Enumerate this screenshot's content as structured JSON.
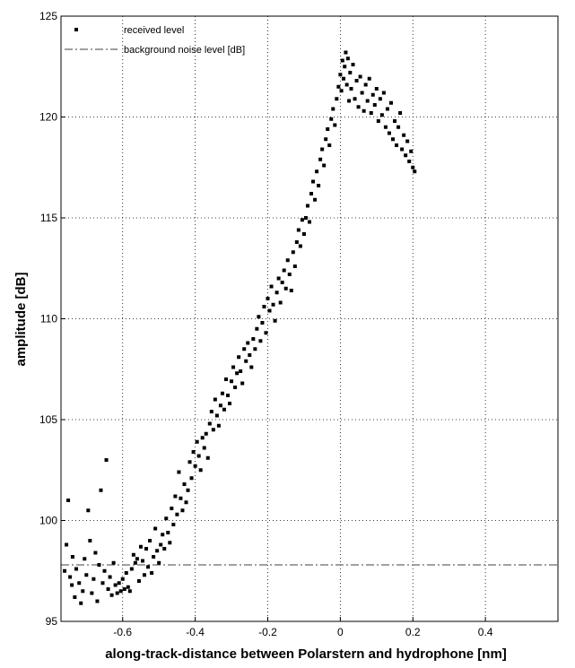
{
  "chart_data": {
    "type": "scatter",
    "title": "",
    "xlabel": "along-track-distance between Polarstern and hydrophone [nm]",
    "ylabel": "amplitude [dB]",
    "xlim": [
      -0.77,
      0.6
    ],
    "ylim": [
      95,
      125
    ],
    "xticks": [
      -0.6,
      -0.4,
      -0.2,
      0,
      0.2,
      0.4
    ],
    "xtick_labels": [
      "-0.6",
      "-0.4",
      "-0.2",
      "0",
      "0.2",
      "0.4"
    ],
    "yticks": [
      95,
      100,
      105,
      110,
      115,
      120,
      125
    ],
    "ytick_labels": [
      "95",
      "100",
      "105",
      "110",
      "115",
      "120",
      "125"
    ],
    "grid": true,
    "legend_position": "top-left",
    "colors": {
      "markers": "#000000",
      "noise_line": "#808080"
    },
    "series": [
      {
        "name": "received level",
        "kind": "points",
        "points": [
          [
            -0.76,
            97.5
          ],
          [
            -0.755,
            98.8
          ],
          [
            -0.75,
            101.0
          ],
          [
            -0.745,
            97.2
          ],
          [
            -0.74,
            96.8
          ],
          [
            -0.738,
            98.2
          ],
          [
            -0.732,
            96.2
          ],
          [
            -0.728,
            97.6
          ],
          [
            -0.72,
            96.9
          ],
          [
            -0.715,
            95.9
          ],
          [
            -0.71,
            96.5
          ],
          [
            -0.705,
            98.1
          ],
          [
            -0.7,
            97.3
          ],
          [
            -0.695,
            100.5
          ],
          [
            -0.69,
            99.0
          ],
          [
            -0.685,
            96.4
          ],
          [
            -0.68,
            97.1
          ],
          [
            -0.675,
            98.4
          ],
          [
            -0.67,
            96.0
          ],
          [
            -0.665,
            97.8
          ],
          [
            -0.66,
            101.5
          ],
          [
            -0.655,
            96.9
          ],
          [
            -0.65,
            97.5
          ],
          [
            -0.645,
            103.0
          ],
          [
            -0.64,
            96.6
          ],
          [
            -0.635,
            97.2
          ],
          [
            -0.63,
            96.3
          ],
          [
            -0.625,
            97.9
          ],
          [
            -0.62,
            96.8
          ],
          [
            -0.615,
            96.4
          ],
          [
            -0.61,
            96.9
          ],
          [
            -0.605,
            96.5
          ],
          [
            -0.6,
            97.1
          ],
          [
            -0.595,
            96.6
          ],
          [
            -0.59,
            97.4
          ],
          [
            -0.585,
            96.7
          ],
          [
            -0.58,
            96.5
          ],
          [
            -0.575,
            97.6
          ],
          [
            -0.57,
            98.3
          ],
          [
            -0.565,
            97.9
          ],
          [
            -0.56,
            98.1
          ],
          [
            -0.555,
            97.0
          ],
          [
            -0.55,
            98.7
          ],
          [
            -0.545,
            98.0
          ],
          [
            -0.54,
            97.3
          ],
          [
            -0.535,
            98.6
          ],
          [
            -0.53,
            97.7
          ],
          [
            -0.525,
            99.0
          ],
          [
            -0.52,
            97.4
          ],
          [
            -0.515,
            98.2
          ],
          [
            -0.51,
            99.6
          ],
          [
            -0.505,
            98.5
          ],
          [
            -0.5,
            97.9
          ],
          [
            -0.495,
            98.8
          ],
          [
            -0.49,
            99.3
          ],
          [
            -0.485,
            98.6
          ],
          [
            -0.48,
            100.1
          ],
          [
            -0.475,
            99.4
          ],
          [
            -0.47,
            98.9
          ],
          [
            -0.465,
            100.6
          ],
          [
            -0.46,
            99.8
          ],
          [
            -0.455,
            101.2
          ],
          [
            -0.45,
            100.3
          ],
          [
            -0.445,
            102.4
          ],
          [
            -0.44,
            101.1
          ],
          [
            -0.435,
            100.5
          ],
          [
            -0.43,
            101.8
          ],
          [
            -0.425,
            100.9
          ],
          [
            -0.42,
            101.5
          ],
          [
            -0.415,
            102.9
          ],
          [
            -0.41,
            102.1
          ],
          [
            -0.405,
            103.4
          ],
          [
            -0.4,
            102.7
          ],
          [
            -0.395,
            103.9
          ],
          [
            -0.39,
            103.2
          ],
          [
            -0.385,
            102.5
          ],
          [
            -0.38,
            104.1
          ],
          [
            -0.375,
            103.6
          ],
          [
            -0.37,
            104.3
          ],
          [
            -0.365,
            103.1
          ],
          [
            -0.36,
            104.8
          ],
          [
            -0.355,
            105.4
          ],
          [
            -0.35,
            104.5
          ],
          [
            -0.345,
            106.0
          ],
          [
            -0.34,
            105.2
          ],
          [
            -0.335,
            104.7
          ],
          [
            -0.33,
            105.7
          ],
          [
            -0.325,
            106.3
          ],
          [
            -0.32,
            105.5
          ],
          [
            -0.315,
            107.0
          ],
          [
            -0.31,
            106.2
          ],
          [
            -0.305,
            105.8
          ],
          [
            -0.3,
            106.9
          ],
          [
            -0.295,
            107.6
          ],
          [
            -0.29,
            106.6
          ],
          [
            -0.285,
            107.3
          ],
          [
            -0.28,
            108.1
          ],
          [
            -0.275,
            107.4
          ],
          [
            -0.27,
            106.8
          ],
          [
            -0.265,
            108.5
          ],
          [
            -0.26,
            107.9
          ],
          [
            -0.255,
            108.8
          ],
          [
            -0.25,
            108.2
          ],
          [
            -0.245,
            107.6
          ],
          [
            -0.24,
            109.0
          ],
          [
            -0.235,
            108.5
          ],
          [
            -0.23,
            109.5
          ],
          [
            -0.225,
            110.1
          ],
          [
            -0.22,
            108.9
          ],
          [
            -0.215,
            109.8
          ],
          [
            -0.21,
            110.6
          ],
          [
            -0.205,
            109.3
          ],
          [
            -0.2,
            111.0
          ],
          [
            -0.195,
            110.4
          ],
          [
            -0.19,
            111.6
          ],
          [
            -0.185,
            110.7
          ],
          [
            -0.18,
            109.9
          ],
          [
            -0.175,
            111.3
          ],
          [
            -0.17,
            112.0
          ],
          [
            -0.165,
            110.8
          ],
          [
            -0.16,
            111.8
          ],
          [
            -0.155,
            112.4
          ],
          [
            -0.15,
            111.5
          ],
          [
            -0.145,
            112.9
          ],
          [
            -0.14,
            112.2
          ],
          [
            -0.135,
            111.4
          ],
          [
            -0.13,
            113.3
          ],
          [
            -0.125,
            112.6
          ],
          [
            -0.12,
            113.8
          ],
          [
            -0.115,
            114.4
          ],
          [
            -0.11,
            113.6
          ],
          [
            -0.105,
            114.9
          ],
          [
            -0.1,
            114.2
          ],
          [
            -0.095,
            115.0
          ],
          [
            -0.09,
            115.6
          ],
          [
            -0.085,
            114.8
          ],
          [
            -0.08,
            116.2
          ],
          [
            -0.075,
            116.8
          ],
          [
            -0.07,
            115.9
          ],
          [
            -0.065,
            117.3
          ],
          [
            -0.06,
            116.6
          ],
          [
            -0.055,
            117.9
          ],
          [
            -0.05,
            118.4
          ],
          [
            -0.045,
            117.6
          ],
          [
            -0.04,
            118.9
          ],
          [
            -0.035,
            119.4
          ],
          [
            -0.03,
            118.6
          ],
          [
            -0.025,
            119.9
          ],
          [
            -0.02,
            120.4
          ],
          [
            -0.015,
            119.6
          ],
          [
            -0.01,
            120.9
          ],
          [
            -0.005,
            121.5
          ],
          [
            0.0,
            122.1
          ],
          [
            0.003,
            121.3
          ],
          [
            0.006,
            122.8
          ],
          [
            0.009,
            121.9
          ],
          [
            0.012,
            122.5
          ],
          [
            0.015,
            123.2
          ],
          [
            0.018,
            121.6
          ],
          [
            0.021,
            122.9
          ],
          [
            0.024,
            120.8
          ],
          [
            0.027,
            122.2
          ],
          [
            0.03,
            121.4
          ],
          [
            0.035,
            122.6
          ],
          [
            0.04,
            120.9
          ],
          [
            0.045,
            121.8
          ],
          [
            0.05,
            120.5
          ],
          [
            0.055,
            122.0
          ],
          [
            0.06,
            121.2
          ],
          [
            0.065,
            120.3
          ],
          [
            0.07,
            121.6
          ],
          [
            0.075,
            120.8
          ],
          [
            0.08,
            121.9
          ],
          [
            0.085,
            120.2
          ],
          [
            0.09,
            121.1
          ],
          [
            0.095,
            120.6
          ],
          [
            0.1,
            121.4
          ],
          [
            0.105,
            119.8
          ],
          [
            0.11,
            120.9
          ],
          [
            0.115,
            120.1
          ],
          [
            0.12,
            121.2
          ],
          [
            0.125,
            119.5
          ],
          [
            0.13,
            120.4
          ],
          [
            0.135,
            119.2
          ],
          [
            0.14,
            120.7
          ],
          [
            0.145,
            118.9
          ],
          [
            0.15,
            119.8
          ],
          [
            0.155,
            118.6
          ],
          [
            0.16,
            119.5
          ],
          [
            0.165,
            120.2
          ],
          [
            0.17,
            118.4
          ],
          [
            0.175,
            119.1
          ],
          [
            0.18,
            118.1
          ],
          [
            0.185,
            118.8
          ],
          [
            0.19,
            117.8
          ],
          [
            0.195,
            118.3
          ],
          [
            0.2,
            117.5
          ],
          [
            0.205,
            117.3
          ]
        ]
      },
      {
        "name": "background noise level [dB]",
        "kind": "hline",
        "y": 97.8
      }
    ]
  }
}
